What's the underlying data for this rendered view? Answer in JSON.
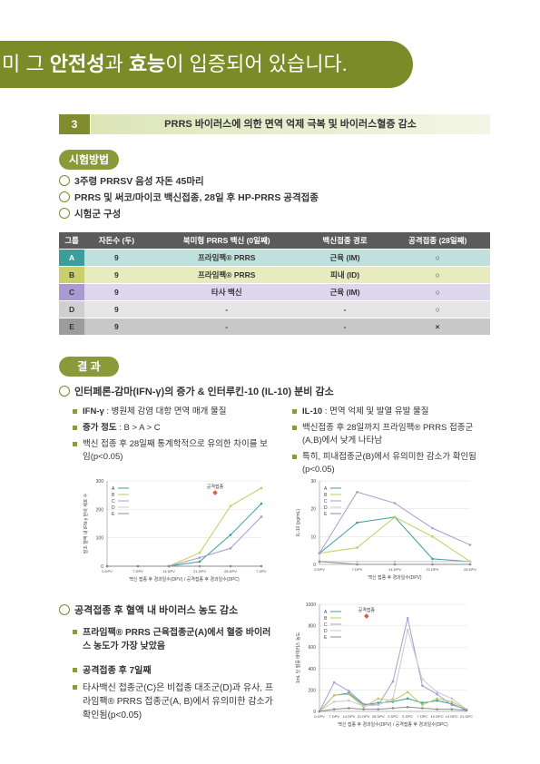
{
  "banner": [
    "미 그 ",
    "안전성",
    "과 ",
    "효능",
    "이 입증되어 있습니다."
  ],
  "section": {
    "number": "3",
    "title": "PRRS 바이러스에 의한 면역 억제 극복 및 바이러스혈증 감소"
  },
  "method": {
    "label": "시험방법",
    "items": [
      "3주령 PRRSV 음성 자돈 45마리",
      "PRRS 및 써코/마이코 백신접종, 28일 후 HP-PRRS 공격접종",
      "시험군 구성"
    ]
  },
  "table": {
    "header": [
      "그룹",
      "자돈수 (두)",
      "북미형 PRRS 백신 (0일째)",
      "백신접종 경로",
      "공격접종 (28일째)"
    ],
    "rows": [
      [
        "A",
        "9",
        "프라임팩® PRRS",
        "근육 (IM)",
        "○"
      ],
      [
        "B",
        "9",
        "프라임팩® PRRS",
        "피내 (ID)",
        "○"
      ],
      [
        "C",
        "9",
        "타사 백신",
        "근육 (IM)",
        "○"
      ],
      [
        "D",
        "9",
        "-",
        "-",
        "○"
      ],
      [
        "E",
        "9",
        "-",
        "-",
        "×"
      ]
    ]
  },
  "results": {
    "label": "결 과",
    "heading1": "인터페론-감마(IFN-γ)의 증가 & 인터루킨-10 (IL-10) 분비 감소",
    "left": [
      {
        "term": "IFN-γ",
        "text": " : 병원체 감염 대항 면역 매개 물질"
      },
      {
        "term": "증가 정도",
        "text": " : B > A > C"
      },
      {
        "text": "백신 접종 후 28일째 통계학적으로 유의한 차이를 보임(p<0.05)"
      }
    ],
    "right": [
      {
        "term": "IL-10",
        "text": " : 면역 억제 및 발열 유발 물질"
      },
      {
        "text": "백신접종 후 28일까지 프라임팩® PRRS 접종군 (A,B)에서 낮게 나타남"
      },
      {
        "text": "특히, 피내접종군(B)에서 유의미한 감소가 확인됨 (p<0.05)"
      }
    ],
    "heading2": "공격접종 후 혈액 내 바이러스 농도 감소",
    "points2": [
      "프라임팩® PRRS 근육접종군(A)에서 혈중 바이러스 농도가 가장 낮았음",
      "공격접종 후 7일째",
      "타사백신 접종군(C)은 비접종 대조군(D)과 유사, 프라임팩® PRRS 접종군(A, B)에서 유의미한 감소가 확인됨(p<0.05)"
    ]
  },
  "chart_data": [
    {
      "type": "line",
      "ylabel": "말초 혈액 내 IFN-γ 분비 세포 수",
      "xlabel": "백신 접종 후 경과일수(DPV) / 공격접종 후 경과일수(DPC)",
      "annotation": "공격접종",
      "categories": [
        "0 DPV",
        "7 DPV",
        "14 DPV",
        "21 DPV",
        "28 DPV",
        "7 DPC"
      ],
      "ylim": [
        0,
        300
      ],
      "yticks": [
        0,
        100,
        200,
        300
      ],
      "grid": true,
      "series": [
        {
          "name": "A",
          "color": "#3b9e9b",
          "values": [
            0,
            0,
            0,
            16,
            110,
            220
          ]
        },
        {
          "name": "B",
          "color": "#c2cb5e",
          "values": [
            0,
            0,
            0,
            47,
            212,
            275
          ]
        },
        {
          "name": "C",
          "color": "#a99bd1",
          "values": [
            0,
            0,
            0,
            30,
            63,
            174
          ]
        },
        {
          "name": "D",
          "color": "#c9c9c9",
          "values": [
            0,
            0,
            0,
            0,
            0,
            0
          ]
        },
        {
          "name": "E",
          "color": "#8c8c8c",
          "values": [
            0,
            0,
            0,
            0,
            0,
            0
          ]
        }
      ]
    },
    {
      "type": "line",
      "ylabel": "IL-10 (pg/mL)",
      "xlabel": "백신 접종 후 경과일수(DPV)",
      "categories": [
        "0 DPV",
        "7 DPV",
        "14 DPV",
        "21 DPV",
        "28 DPV"
      ],
      "ylim": [
        0,
        30
      ],
      "yticks": [
        0,
        10,
        20,
        30
      ],
      "grid": true,
      "series": [
        {
          "name": "A",
          "color": "#3b9e9b",
          "values": [
            4,
            15,
            17,
            2,
            1
          ]
        },
        {
          "name": "B",
          "color": "#c2cb5e",
          "values": [
            4,
            6,
            17,
            10,
            1
          ]
        },
        {
          "name": "C",
          "color": "#a99bd1",
          "values": [
            4,
            26,
            22,
            13,
            7
          ]
        },
        {
          "name": "D",
          "color": "#c9c9c9",
          "values": [
            1,
            1,
            1,
            1,
            1
          ]
        },
        {
          "name": "E",
          "color": "#8c8c8c",
          "values": [
            1,
            0,
            0,
            0,
            0
          ]
        }
      ]
    },
    {
      "type": "line",
      "ylabel": "1mL 당 혈중 바이러스 농도",
      "xlabel": "백신 접종 후 경과일수(DPV) / 공격접종 후 경과일수(DPC)",
      "annotation": "공격접종",
      "categories": [
        "0 DPV",
        "7 DPV",
        "14 DPV",
        "21 DPV",
        "28 DPV",
        "3 DPC",
        "5 DPC",
        "7 DPC",
        "10 DPC",
        "14 DPC",
        "21 DPC"
      ],
      "ylim": [
        0,
        1000
      ],
      "yticks": [
        0,
        200,
        400,
        600,
        800,
        1000
      ],
      "grid": true,
      "series": [
        {
          "name": "A",
          "color": "#3b9e9b",
          "values": [
            0,
            150,
            170,
            60,
            80,
            90,
            120,
            80,
            100,
            70,
            10
          ]
        },
        {
          "name": "B",
          "color": "#c2cb5e",
          "values": [
            0,
            150,
            160,
            40,
            120,
            100,
            180,
            60,
            120,
            90,
            20
          ]
        },
        {
          "name": "C",
          "color": "#a99bd1",
          "values": [
            0,
            270,
            190,
            70,
            60,
            280,
            870,
            240,
            160,
            60,
            20
          ]
        },
        {
          "name": "D",
          "color": "#c9c9c9",
          "values": [
            0,
            90,
            100,
            50,
            60,
            120,
            760,
            300,
            180,
            120,
            20
          ]
        },
        {
          "name": "E",
          "color": "#8c8c8c",
          "values": [
            0,
            20,
            30,
            20,
            20,
            30,
            40,
            30,
            20,
            20,
            10
          ]
        }
      ]
    }
  ]
}
